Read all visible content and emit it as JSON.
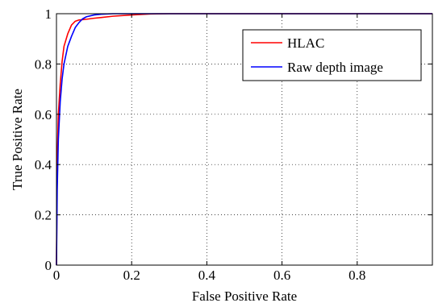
{
  "chart_data": {
    "type": "line",
    "title": "",
    "xlabel": "False Positive Rate",
    "ylabel": "True Positive Rate",
    "xlim": [
      0,
      1
    ],
    "ylim": [
      0,
      1
    ],
    "xticks": [
      "0",
      "0.2",
      "0.4",
      "0.6",
      "0.8"
    ],
    "yticks": [
      "0",
      "0.2",
      "0.4",
      "0.6",
      "0.8",
      "1"
    ],
    "grid": true,
    "legend_position": "top-right",
    "series": [
      {
        "name": "HLAC",
        "color": "#ff0000",
        "x": [
          0,
          0.002,
          0.005,
          0.01,
          0.015,
          0.02,
          0.03,
          0.04,
          0.05,
          0.06,
          0.08,
          0.1,
          0.12,
          0.15,
          0.2,
          0.25,
          0.3,
          1.0
        ],
        "y": [
          0,
          0.42,
          0.6,
          0.72,
          0.81,
          0.87,
          0.92,
          0.955,
          0.97,
          0.975,
          0.978,
          0.982,
          0.985,
          0.99,
          0.995,
          0.999,
          1.0,
          1.0
        ]
      },
      {
        "name": "Raw depth image",
        "color": "#0000ff",
        "x": [
          0,
          0.002,
          0.005,
          0.01,
          0.015,
          0.02,
          0.03,
          0.04,
          0.05,
          0.06,
          0.07,
          0.08,
          0.1,
          0.12,
          0.15,
          0.2,
          1.0
        ],
        "y": [
          0,
          0.3,
          0.5,
          0.65,
          0.74,
          0.8,
          0.87,
          0.91,
          0.945,
          0.965,
          0.98,
          0.988,
          0.995,
          0.998,
          1.0,
          1.0,
          1.0
        ]
      }
    ]
  }
}
